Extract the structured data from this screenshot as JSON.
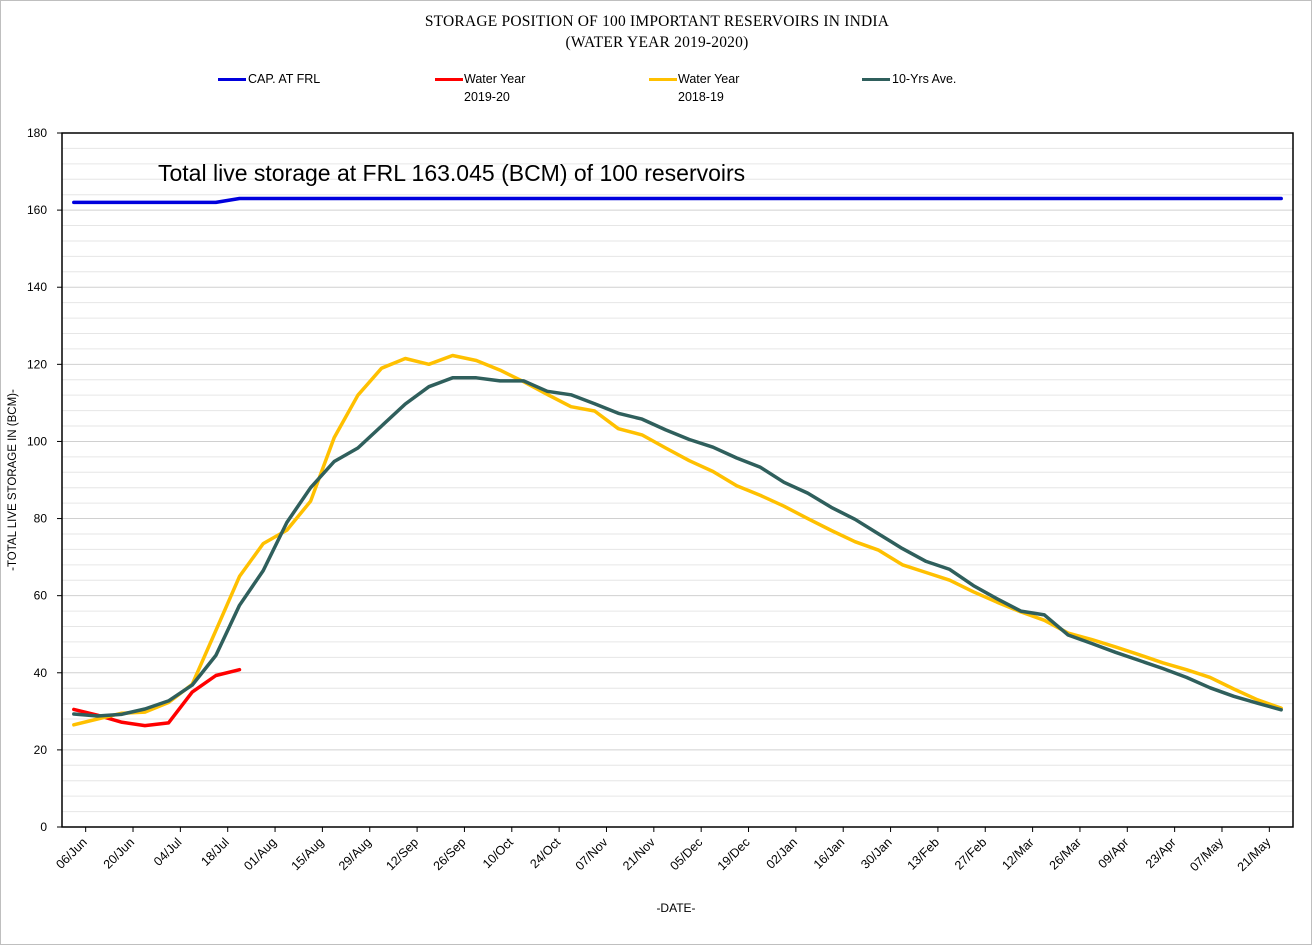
{
  "title_line1": "STORAGE POSITION OF 100 IMPORTANT RESERVOIRS IN INDIA",
  "title_line2": "(WATER YEAR 2019-2020)",
  "legend": [
    {
      "line1": "CAP. AT FRL",
      "line2": "",
      "color": "#0000dd"
    },
    {
      "line1": "Water Year",
      "line2": "2019-20",
      "color": "#ff0000"
    },
    {
      "line1": "Water Year",
      "line2": "2018-19",
      "color": "#ffc000"
    },
    {
      "line1": "10-Yrs Ave.",
      "line2": "",
      "color": "#2f5f5c"
    }
  ],
  "chart_data": {
    "type": "line",
    "title": "STORAGE POSITION OF 100 IMPORTANT RESERVOIRS IN INDIA (WATER YEAR 2019-2020)",
    "annotation": "Total live storage at FRL 163.045 (BCM) of 100 reservoirs",
    "xlabel": "-DATE-",
    "ylabel": "-TOTAL LIVE STORAGE IN (BCM)-",
    "ylim": [
      0,
      180
    ],
    "ytick_step": 20,
    "minor_grid_step": 4,
    "grid": true,
    "legend_position": "top",
    "x_labels": [
      "06/Jun",
      "20/Jun",
      "04/Jul",
      "18/Jul",
      "01/Aug",
      "15/Aug",
      "29/Aug",
      "12/Sep",
      "26/Sep",
      "10/Oct",
      "24/Oct",
      "07/Nov",
      "21/Nov",
      "05/Dec",
      "19/Dec",
      "02/Jan",
      "16/Jan",
      "30/Jan",
      "13/Feb",
      "27/Feb",
      "12/Mar",
      "26/Mar",
      "09/Apr",
      "23/Apr",
      "07/May",
      "21/May"
    ],
    "x_points": 52,
    "series": [
      {
        "name": "CAP. AT FRL",
        "color": "#0000dd",
        "values": [
          162,
          162,
          162,
          162,
          162,
          162,
          162,
          163,
          163,
          163,
          163,
          163,
          163,
          163,
          163,
          163,
          163,
          163,
          163,
          163,
          163,
          163,
          163,
          163,
          163,
          163,
          163,
          163,
          163,
          163,
          163,
          163,
          163,
          163,
          163,
          163,
          163,
          163,
          163,
          163,
          163,
          163,
          163,
          163,
          163,
          163,
          163,
          163,
          163,
          163,
          163,
          163
        ]
      },
      {
        "name": "Water Year 2019-20",
        "color": "#ff0000",
        "values": [
          30.5,
          29,
          27.2,
          26.3,
          27,
          35,
          39.3,
          40.8
        ]
      },
      {
        "name": "Water Year 2018-19",
        "color": "#ffc000",
        "values": [
          26.5,
          28,
          29.5,
          29.8,
          32.3,
          37,
          51,
          65,
          73.5,
          77,
          84.5,
          101,
          112,
          119,
          121.5,
          120,
          122.3,
          121,
          118.5,
          115.5,
          112.2,
          109,
          107.9,
          103.3,
          101.7,
          98.3,
          95,
          92.2,
          88.5,
          86,
          83.2,
          80,
          76.9,
          74,
          71.8,
          68,
          66,
          64,
          61,
          58.3,
          55.8,
          53.6,
          50.3,
          48.6,
          46.7,
          44.7,
          42.6,
          40.8,
          38.8,
          35.8,
          33,
          30.8
        ]
      },
      {
        "name": "10-Yrs Ave.",
        "color": "#2f5f5c",
        "values": [
          29.3,
          28.8,
          29.2,
          30.6,
          32.7,
          36.8,
          44.5,
          57.5,
          66.5,
          79,
          88,
          94.8,
          98.3,
          104,
          109.7,
          114.2,
          116.5,
          116.5,
          115.7,
          115.7,
          113,
          112.1,
          109.8,
          107.3,
          105.8,
          103,
          100.5,
          98.5,
          95.7,
          93.3,
          89.4,
          86.6,
          82.9,
          79.8,
          76,
          72.2,
          68.9,
          66.8,
          62.6,
          59.2,
          56,
          55,
          49.8,
          47.6,
          45.3,
          43.2,
          41.1,
          38.8,
          36.1,
          33.9,
          32.1,
          30.4
        ]
      }
    ]
  }
}
